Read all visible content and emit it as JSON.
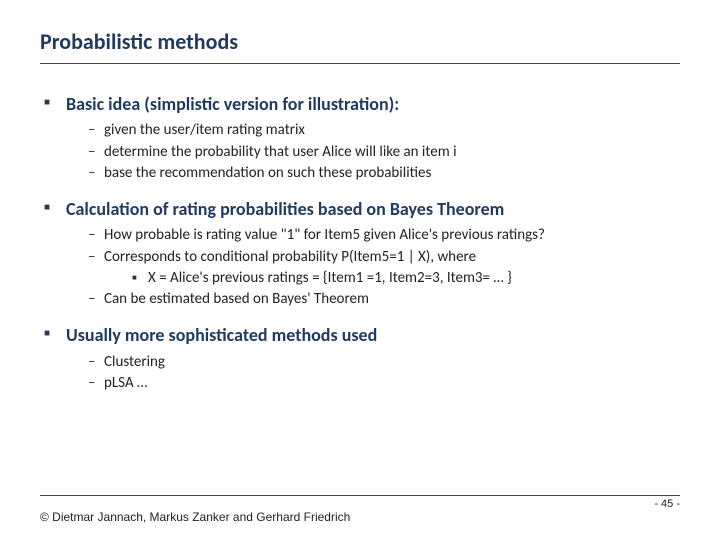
{
  "title": "Probabilistic methods",
  "sections": [
    {
      "head": "Basic idea (simplistic version for illustration):",
      "items": [
        "given the user/item rating matrix",
        "determine the probability that user Alice will like an item i",
        "base the recommendation on such these probabilities"
      ]
    },
    {
      "head": "Calculation of rating probabilities based on Bayes Theorem",
      "items": [
        "How probable is rating value \"1\" for Item5 given Alice's previous ratings?",
        "Corresponds to conditional probability P(Item5=1 | X), where",
        "Can be estimated based on Bayes' Theorem"
      ],
      "subsub_after": 1,
      "subsub": [
        "X = Alice's previous ratings = {Item1 =1, Item2=3, Item3= … }"
      ]
    },
    {
      "head": "Usually more sophisticated methods used",
      "items": [
        "Clustering",
        "pLSA …"
      ]
    }
  ],
  "copyright": "© Dietmar Jannach, Markus Zanker and Gerhard Friedrich",
  "page": "- 45 -"
}
